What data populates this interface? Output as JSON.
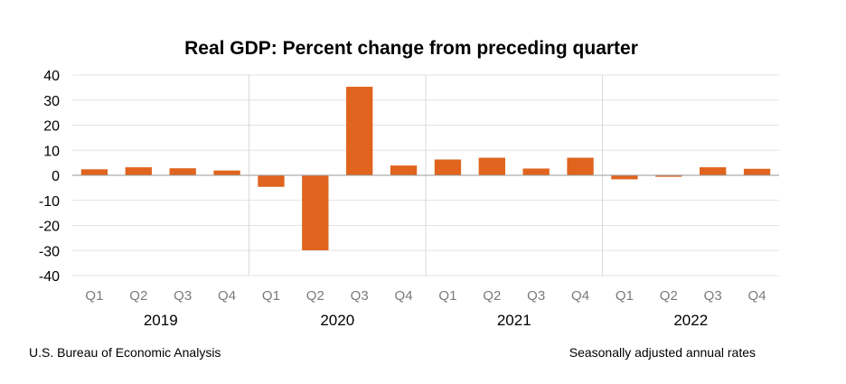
{
  "chart_data": {
    "type": "bar",
    "title": "Real GDP:  Percent change from preceding quarter",
    "source": "U.S. Bureau of Economic Analysis",
    "note": "Seasonally adjusted annual rates",
    "ylim": [
      -40,
      40
    ],
    "yticks": [
      40,
      30,
      20,
      10,
      0,
      -10,
      -20,
      -30,
      -40
    ],
    "grid": true,
    "bar_color": "#e0641e",
    "groups": [
      {
        "year": "2019",
        "quarters": [
          "Q1",
          "Q2",
          "Q3",
          "Q4"
        ],
        "values": [
          2.4,
          3.2,
          2.8,
          1.9
        ]
      },
      {
        "year": "2020",
        "quarters": [
          "Q1",
          "Q2",
          "Q3",
          "Q4"
        ],
        "values": [
          -4.6,
          -29.9,
          35.3,
          3.9
        ]
      },
      {
        "year": "2021",
        "quarters": [
          "Q1",
          "Q2",
          "Q3",
          "Q4"
        ],
        "values": [
          6.3,
          7.0,
          2.7,
          7.0
        ]
      },
      {
        "year": "2022",
        "quarters": [
          "Q1",
          "Q2",
          "Q3",
          "Q4"
        ],
        "values": [
          -1.6,
          -0.6,
          3.2,
          2.6
        ]
      }
    ]
  }
}
